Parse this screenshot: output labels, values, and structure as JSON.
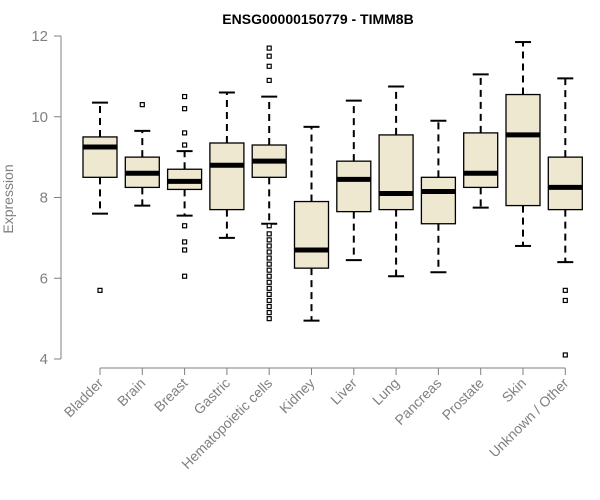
{
  "chart_data": {
    "type": "boxplot",
    "title": "ENSG00000150779 - TIMM8B",
    "xlabel": "",
    "ylabel": "Expression",
    "ylim": [
      4,
      12
    ],
    "yticks": [
      4,
      6,
      8,
      10,
      12
    ],
    "grid": false,
    "box_color": "#EEE8D0",
    "categories": [
      "Bladder",
      "Brain",
      "Breast",
      "Gastric",
      "Hematopoietic cells",
      "Kidney",
      "Liver",
      "Lung",
      "Pancreas",
      "Prostate",
      "Skin",
      "Unknown / Other"
    ],
    "boxes": [
      {
        "whisker_low": 7.6,
        "q1": 8.5,
        "median": 9.25,
        "q3": 9.5,
        "whisker_high": 10.35,
        "outliers": [
          5.7
        ]
      },
      {
        "whisker_low": 7.8,
        "q1": 8.25,
        "median": 8.6,
        "q3": 9.0,
        "whisker_high": 9.65,
        "outliers": [
          10.3
        ]
      },
      {
        "whisker_low": 7.55,
        "q1": 8.2,
        "median": 8.4,
        "q3": 8.7,
        "whisker_high": 9.15,
        "outliers": [
          10.5,
          10.2,
          9.6,
          9.3,
          7.3,
          6.9,
          6.7,
          6.05
        ]
      },
      {
        "whisker_low": 7.0,
        "q1": 7.7,
        "median": 8.8,
        "q3": 9.35,
        "whisker_high": 10.6,
        "outliers": []
      },
      {
        "whisker_low": 7.35,
        "q1": 8.5,
        "median": 8.9,
        "q3": 9.3,
        "whisker_high": 10.5,
        "outliers": [
          11.7,
          11.5,
          11.25,
          10.9,
          7.3,
          7.1,
          6.95,
          6.8,
          6.65,
          6.5,
          6.35,
          6.2,
          6.05,
          5.9,
          5.75,
          5.6,
          5.45,
          5.3,
          5.15,
          5.0
        ]
      },
      {
        "whisker_low": 4.95,
        "q1": 6.25,
        "median": 6.7,
        "q3": 7.9,
        "whisker_high": 9.75,
        "outliers": []
      },
      {
        "whisker_low": 6.45,
        "q1": 7.65,
        "median": 8.45,
        "q3": 8.9,
        "whisker_high": 10.4,
        "outliers": []
      },
      {
        "whisker_low": 6.05,
        "q1": 7.7,
        "median": 8.1,
        "q3": 9.55,
        "whisker_high": 10.75,
        "outliers": []
      },
      {
        "whisker_low": 6.15,
        "q1": 7.35,
        "median": 8.15,
        "q3": 8.5,
        "whisker_high": 9.9,
        "outliers": []
      },
      {
        "whisker_low": 7.75,
        "q1": 8.25,
        "median": 8.6,
        "q3": 9.6,
        "whisker_high": 11.05,
        "outliers": []
      },
      {
        "whisker_low": 6.8,
        "q1": 7.8,
        "median": 9.55,
        "q3": 10.55,
        "whisker_high": 11.85,
        "outliers": []
      },
      {
        "whisker_low": 6.4,
        "q1": 7.7,
        "median": 8.25,
        "q3": 9.0,
        "whisker_high": 10.95,
        "outliers": [
          5.7,
          5.45,
          4.1
        ]
      }
    ]
  }
}
